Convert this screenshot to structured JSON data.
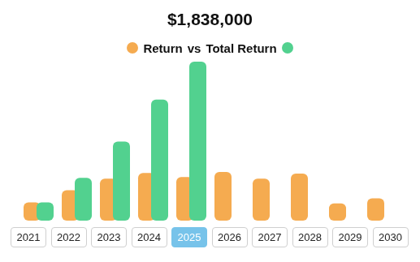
{
  "chart_data": {
    "type": "bar",
    "title": "$1,838,000",
    "categories": [
      "2021",
      "2022",
      "2023",
      "2024",
      "2025",
      "2026",
      "2027",
      "2028",
      "2029",
      "2030"
    ],
    "series": [
      {
        "name": "Return",
        "color": "#f5ab50",
        "values": [
          210000,
          352000,
          486000,
          552000,
          505000,
          562000,
          486000,
          543000,
          200000,
          257000
        ]
      },
      {
        "name": "Total Return",
        "color": "#52d18f",
        "values": [
          210000,
          495000,
          914000,
          1400000,
          1838000,
          null,
          null,
          null,
          null,
          null
        ]
      }
    ],
    "annotations": [
      "vs"
    ],
    "ylim": [
      0,
      1838000
    ],
    "legend": "top",
    "tick_labels": "x",
    "grid": false,
    "data_labels": false
  }
}
